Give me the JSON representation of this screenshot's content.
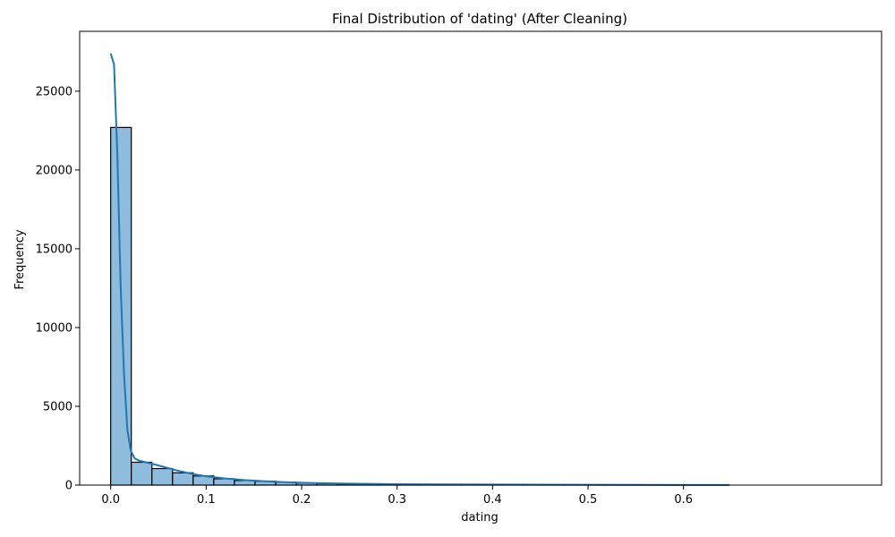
{
  "chart_data": {
    "type": "bar",
    "title": "Final Distribution of 'dating' (After Cleaning)",
    "xlabel": "dating",
    "ylabel": "Frequency",
    "xlim": [
      -0.0325,
      0.8075
    ],
    "ylim": [
      0,
      28800
    ],
    "xticks": [
      0.0,
      0.1,
      0.2,
      0.3,
      0.4,
      0.5,
      0.6
    ],
    "xtick_labels": [
      "0.0",
      "0.1",
      "0.2",
      "0.3",
      "0.4",
      "0.5",
      "0.6"
    ],
    "yticks": [
      0,
      5000,
      10000,
      15000,
      20000,
      25000
    ],
    "ytick_labels": [
      "0",
      "5000",
      "10000",
      "15000",
      "20000",
      "25000"
    ],
    "bin_edges": [
      0.0,
      0.0216,
      0.0432,
      0.0648,
      0.0864,
      0.108,
      0.1296,
      0.1512,
      0.1728,
      0.1944,
      0.216,
      0.2376,
      0.2592,
      0.2808,
      0.3024,
      0.324,
      0.3456,
      0.3672,
      0.3888,
      0.4104,
      0.432,
      0.4536,
      0.4752,
      0.4968,
      0.5184,
      0.54,
      0.5616,
      0.5832,
      0.6048,
      0.6264,
      0.648
    ],
    "counts": [
      22700,
      1450,
      1050,
      780,
      580,
      400,
      290,
      240,
      180,
      130,
      95,
      75,
      60,
      50,
      40,
      35,
      30,
      25,
      20,
      18,
      15,
      12,
      10,
      10,
      8,
      7,
      6,
      5,
      4,
      3
    ],
    "kde": {
      "name": "KDE",
      "x": [
        0.0,
        0.0035,
        0.007,
        0.0105,
        0.014,
        0.0175,
        0.021,
        0.025,
        0.03,
        0.04,
        0.05,
        0.06,
        0.07,
        0.08,
        0.09,
        0.1,
        0.12,
        0.14,
        0.16,
        0.18,
        0.2,
        0.22,
        0.25,
        0.3,
        0.35,
        0.4,
        0.45,
        0.5,
        0.55,
        0.6,
        0.648
      ],
      "y": [
        27400,
        26700,
        21000,
        12500,
        7000,
        3500,
        2200,
        1700,
        1550,
        1400,
        1250,
        1080,
        920,
        780,
        660,
        560,
        420,
        320,
        250,
        190,
        150,
        120,
        90,
        60,
        45,
        35,
        25,
        18,
        12,
        8,
        5
      ]
    },
    "grid": false,
    "legend": "none"
  },
  "colors": {
    "bar_fill": "#8fbbdc",
    "bar_edge": "#000000",
    "kde_line": "#1f77b4",
    "axes": "#000000"
  }
}
